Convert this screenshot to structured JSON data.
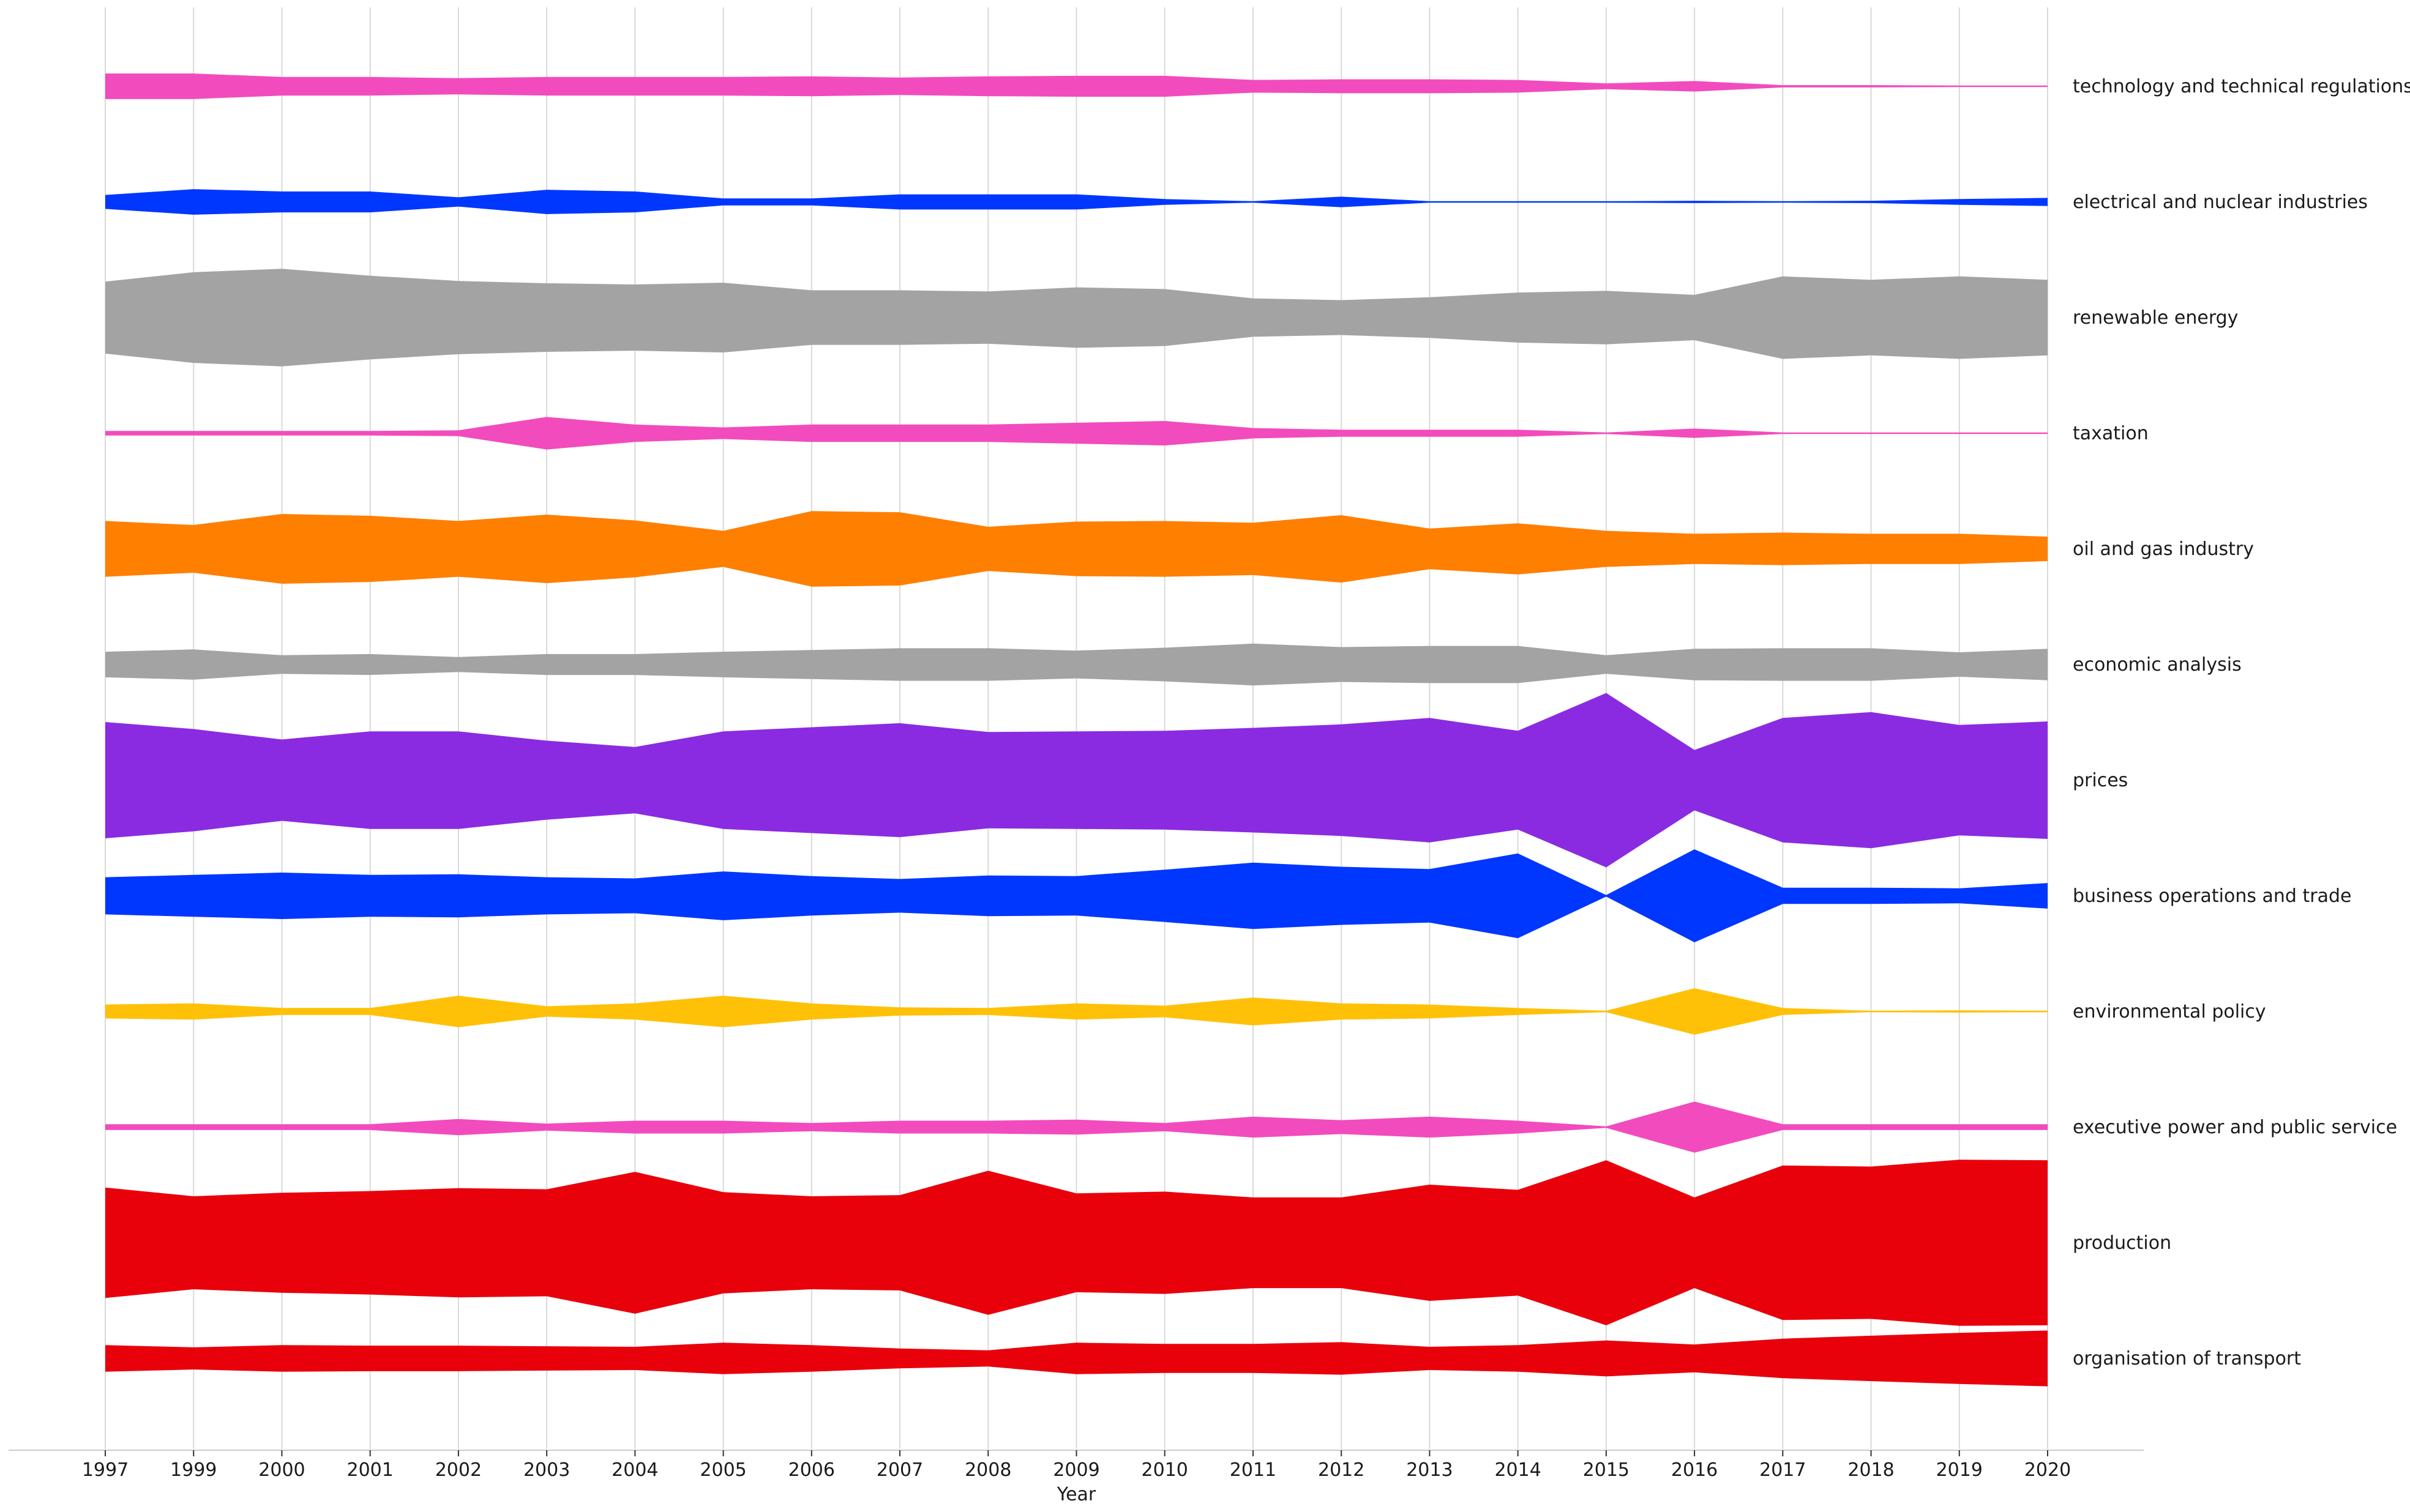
{
  "chart_data": {
    "type": "area",
    "subtype": "ridgeline-violin",
    "xlabel": "Year",
    "ylabel": "",
    "grid": "vertical",
    "x": [
      1997,
      1999,
      2000,
      2001,
      2002,
      2003,
      2004,
      2005,
      2006,
      2007,
      2008,
      2009,
      2010,
      2011,
      2012,
      2013,
      2014,
      2015,
      2016,
      2017,
      2018,
      2019,
      2020
    ],
    "series": [
      {
        "name": "technology and technical regulations",
        "color": "#f24bbe",
        "values": [
          0.22,
          0.22,
          0.16,
          0.16,
          0.14,
          0.16,
          0.16,
          0.16,
          0.17,
          0.15,
          0.17,
          0.18,
          0.18,
          0.11,
          0.12,
          0.12,
          0.11,
          0.05,
          0.09,
          0.02,
          0.02,
          0.01,
          0.01
        ]
      },
      {
        "name": "electrical and nuclear industries",
        "color": "#0037ff",
        "values": [
          0.12,
          0.22,
          0.18,
          0.18,
          0.08,
          0.21,
          0.18,
          0.06,
          0.06,
          0.13,
          0.13,
          0.13,
          0.05,
          0.01,
          0.09,
          0.01,
          0.01,
          0.01,
          0.02,
          0.01,
          0.02,
          0.05,
          0.07
        ]
      },
      {
        "name": "renewable energy",
        "color": "#a3a3a3",
        "values": [
          0.62,
          0.78,
          0.84,
          0.72,
          0.63,
          0.59,
          0.57,
          0.6,
          0.47,
          0.47,
          0.45,
          0.52,
          0.49,
          0.33,
          0.3,
          0.35,
          0.43,
          0.46,
          0.39,
          0.71,
          0.65,
          0.71,
          0.65
        ]
      },
      {
        "name": "taxation",
        "color": "#f24bbe",
        "values": [
          0.04,
          0.04,
          0.04,
          0.04,
          0.05,
          0.28,
          0.15,
          0.1,
          0.15,
          0.15,
          0.15,
          0.18,
          0.21,
          0.09,
          0.06,
          0.06,
          0.06,
          0.01,
          0.08,
          0.01,
          0.01,
          0.01,
          0.01
        ]
      },
      {
        "name": "oil and gas industry",
        "color": "#ff7f00",
        "values": [
          0.48,
          0.41,
          0.6,
          0.57,
          0.48,
          0.59,
          0.49,
          0.31,
          0.65,
          0.63,
          0.38,
          0.47,
          0.48,
          0.45,
          0.58,
          0.35,
          0.44,
          0.31,
          0.26,
          0.28,
          0.26,
          0.26,
          0.21
        ]
      },
      {
        "name": "economic analysis",
        "color": "#a3a3a3",
        "values": [
          0.22,
          0.26,
          0.16,
          0.18,
          0.13,
          0.18,
          0.18,
          0.22,
          0.25,
          0.28,
          0.28,
          0.24,
          0.29,
          0.36,
          0.3,
          0.32,
          0.32,
          0.16,
          0.27,
          0.28,
          0.28,
          0.21,
          0.27
        ]
      },
      {
        "name": "prices",
        "color": "#8a2be2",
        "values": [
          1.0,
          0.88,
          0.7,
          0.84,
          0.84,
          0.68,
          0.57,
          0.84,
          0.91,
          0.98,
          0.83,
          0.84,
          0.85,
          0.9,
          0.96,
          1.07,
          0.85,
          1.5,
          0.52,
          1.07,
          1.17,
          0.95,
          1.01
        ]
      },
      {
        "name": "business operations and trade",
        "color": "#0037ff",
        "values": [
          0.32,
          0.36,
          0.4,
          0.36,
          0.37,
          0.32,
          0.3,
          0.42,
          0.34,
          0.29,
          0.35,
          0.34,
          0.45,
          0.57,
          0.5,
          0.46,
          0.73,
          0.01,
          0.8,
          0.14,
          0.14,
          0.13,
          0.22
        ]
      },
      {
        "name": "environmental policy",
        "color": "#ffc107",
        "values": [
          0.12,
          0.14,
          0.06,
          0.06,
          0.27,
          0.09,
          0.14,
          0.27,
          0.14,
          0.07,
          0.06,
          0.14,
          0.1,
          0.24,
          0.14,
          0.12,
          0.06,
          0.01,
          0.4,
          0.06,
          0.01,
          0.02,
          0.01
        ]
      },
      {
        "name": "executive power and public service",
        "color": "#f24bbe",
        "values": [
          0.05,
          0.05,
          0.05,
          0.05,
          0.14,
          0.06,
          0.11,
          0.11,
          0.07,
          0.11,
          0.11,
          0.13,
          0.07,
          0.18,
          0.12,
          0.18,
          0.11,
          0.01,
          0.44,
          0.05,
          0.05,
          0.05,
          0.05
        ]
      },
      {
        "name": "production",
        "color": "#e8000b",
        "values": [
          0.95,
          0.8,
          0.86,
          0.89,
          0.94,
          0.92,
          1.22,
          0.87,
          0.8,
          0.82,
          1.24,
          0.85,
          0.88,
          0.78,
          0.78,
          1.0,
          0.91,
          1.42,
          0.78,
          1.33,
          1.31,
          1.43,
          1.42
        ]
      },
      {
        "name": "organisation of transport",
        "color": "#e8000b",
        "values": [
          0.23,
          0.19,
          0.23,
          0.22,
          0.22,
          0.21,
          0.2,
          0.27,
          0.23,
          0.17,
          0.14,
          0.27,
          0.25,
          0.25,
          0.28,
          0.2,
          0.23,
          0.31,
          0.24,
          0.34,
          0.39,
          0.44,
          0.48
        ]
      }
    ]
  }
}
